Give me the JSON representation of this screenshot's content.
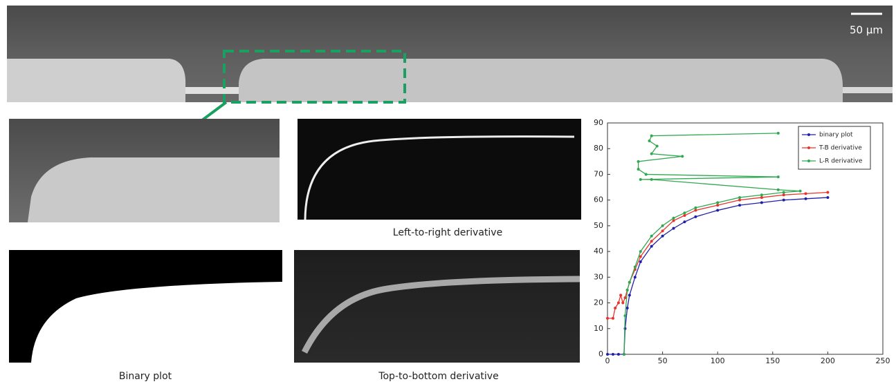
{
  "scale_bar": "50 µm",
  "captions": {
    "left_to_right": "Left-to-right derivative",
    "binary": "Binary plot",
    "top_to_bottom": "Top-to-bottom derivative"
  },
  "chart_data": {
    "type": "line",
    "xlim": [
      0,
      250
    ],
    "xticks": [
      0,
      50,
      100,
      150,
      200,
      250
    ],
    "ylim": [
      0,
      90
    ],
    "yticks": [
      0,
      10,
      20,
      30,
      40,
      50,
      60,
      70,
      80,
      90
    ],
    "legend": "upper right",
    "series": [
      {
        "name": "binary plot",
        "color": "#1f1fa8",
        "x": [
          0,
          5,
          10,
          15,
          16,
          18,
          20,
          25,
          30,
          40,
          50,
          60,
          70,
          80,
          100,
          120,
          140,
          160,
          180,
          200
        ],
        "values": [
          0,
          0,
          0,
          0,
          10,
          18,
          23,
          30,
          36,
          42,
          46,
          49,
          51.5,
          53.5,
          56,
          58,
          59,
          60,
          60.5,
          61
        ]
      },
      {
        "name": "T-B derivative",
        "color": "#e8322c",
        "x": [
          0,
          5,
          7,
          10,
          12,
          14,
          16,
          18,
          20,
          25,
          30,
          40,
          50,
          60,
          70,
          80,
          100,
          120,
          140,
          160,
          180,
          200
        ],
        "values": [
          14,
          14,
          18,
          20,
          23,
          20,
          22,
          25,
          28,
          33,
          38,
          44,
          48,
          52,
          54,
          56,
          58,
          60,
          61,
          62,
          62.5,
          63
        ]
      },
      {
        "name": "L-R derivative",
        "color": "#2fa84f",
        "x": [
          15,
          16,
          18,
          20,
          25,
          30,
          40,
          50,
          60,
          70,
          80,
          100,
          120,
          140,
          160,
          175,
          155,
          40,
          30,
          155,
          35,
          28,
          28,
          68,
          40,
          45,
          38,
          40,
          155
        ],
        "values": [
          0,
          15,
          25,
          28,
          34,
          40,
          46,
          50,
          53,
          55,
          57,
          59,
          61,
          62,
          63,
          63.5,
          64,
          68,
          68,
          69,
          70,
          72,
          75,
          77,
          78,
          81,
          83,
          85,
          86
        ]
      }
    ]
  }
}
